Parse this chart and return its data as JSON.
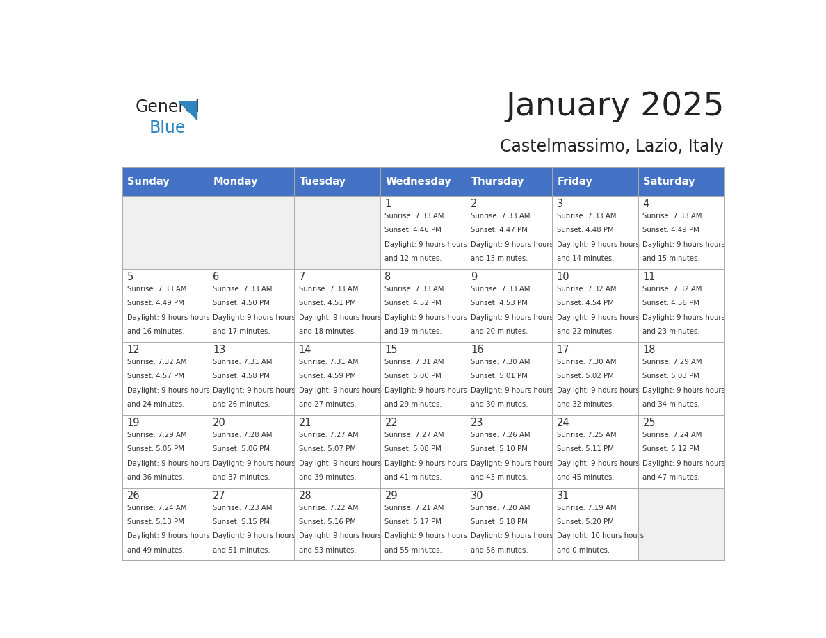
{
  "title": "January 2025",
  "subtitle": "Castelmassimo, Lazio, Italy",
  "days_of_week": [
    "Sunday",
    "Monday",
    "Tuesday",
    "Wednesday",
    "Thursday",
    "Friday",
    "Saturday"
  ],
  "header_bg": "#4472C4",
  "header_text": "#FFFFFF",
  "cell_bg_normal": "#FFFFFF",
  "cell_bg_empty": "#F0F0F0",
  "cell_border": "#AAAAAA",
  "day_number_color": "#333333",
  "text_color": "#333333",
  "title_color": "#222222",
  "subtitle_color": "#222222",
  "logo_general_color": "#222222",
  "logo_blue_color": "#2E86C1",
  "calendar_data": [
    [
      {
        "day": null,
        "sunrise": null,
        "sunset": null,
        "daylight": null
      },
      {
        "day": null,
        "sunrise": null,
        "sunset": null,
        "daylight": null
      },
      {
        "day": null,
        "sunrise": null,
        "sunset": null,
        "daylight": null
      },
      {
        "day": 1,
        "sunrise": "7:33 AM",
        "sunset": "4:46 PM",
        "daylight": "9 hours and 12 minutes."
      },
      {
        "day": 2,
        "sunrise": "7:33 AM",
        "sunset": "4:47 PM",
        "daylight": "9 hours and 13 minutes."
      },
      {
        "day": 3,
        "sunrise": "7:33 AM",
        "sunset": "4:48 PM",
        "daylight": "9 hours and 14 minutes."
      },
      {
        "day": 4,
        "sunrise": "7:33 AM",
        "sunset": "4:49 PM",
        "daylight": "9 hours and 15 minutes."
      }
    ],
    [
      {
        "day": 5,
        "sunrise": "7:33 AM",
        "sunset": "4:49 PM",
        "daylight": "9 hours and 16 minutes."
      },
      {
        "day": 6,
        "sunrise": "7:33 AM",
        "sunset": "4:50 PM",
        "daylight": "9 hours and 17 minutes."
      },
      {
        "day": 7,
        "sunrise": "7:33 AM",
        "sunset": "4:51 PM",
        "daylight": "9 hours and 18 minutes."
      },
      {
        "day": 8,
        "sunrise": "7:33 AM",
        "sunset": "4:52 PM",
        "daylight": "9 hours and 19 minutes."
      },
      {
        "day": 9,
        "sunrise": "7:33 AM",
        "sunset": "4:53 PM",
        "daylight": "9 hours and 20 minutes."
      },
      {
        "day": 10,
        "sunrise": "7:32 AM",
        "sunset": "4:54 PM",
        "daylight": "9 hours and 22 minutes."
      },
      {
        "day": 11,
        "sunrise": "7:32 AM",
        "sunset": "4:56 PM",
        "daylight": "9 hours and 23 minutes."
      }
    ],
    [
      {
        "day": 12,
        "sunrise": "7:32 AM",
        "sunset": "4:57 PM",
        "daylight": "9 hours and 24 minutes."
      },
      {
        "day": 13,
        "sunrise": "7:31 AM",
        "sunset": "4:58 PM",
        "daylight": "9 hours and 26 minutes."
      },
      {
        "day": 14,
        "sunrise": "7:31 AM",
        "sunset": "4:59 PM",
        "daylight": "9 hours and 27 minutes."
      },
      {
        "day": 15,
        "sunrise": "7:31 AM",
        "sunset": "5:00 PM",
        "daylight": "9 hours and 29 minutes."
      },
      {
        "day": 16,
        "sunrise": "7:30 AM",
        "sunset": "5:01 PM",
        "daylight": "9 hours and 30 minutes."
      },
      {
        "day": 17,
        "sunrise": "7:30 AM",
        "sunset": "5:02 PM",
        "daylight": "9 hours and 32 minutes."
      },
      {
        "day": 18,
        "sunrise": "7:29 AM",
        "sunset": "5:03 PM",
        "daylight": "9 hours and 34 minutes."
      }
    ],
    [
      {
        "day": 19,
        "sunrise": "7:29 AM",
        "sunset": "5:05 PM",
        "daylight": "9 hours and 36 minutes."
      },
      {
        "day": 20,
        "sunrise": "7:28 AM",
        "sunset": "5:06 PM",
        "daylight": "9 hours and 37 minutes."
      },
      {
        "day": 21,
        "sunrise": "7:27 AM",
        "sunset": "5:07 PM",
        "daylight": "9 hours and 39 minutes."
      },
      {
        "day": 22,
        "sunrise": "7:27 AM",
        "sunset": "5:08 PM",
        "daylight": "9 hours and 41 minutes."
      },
      {
        "day": 23,
        "sunrise": "7:26 AM",
        "sunset": "5:10 PM",
        "daylight": "9 hours and 43 minutes."
      },
      {
        "day": 24,
        "sunrise": "7:25 AM",
        "sunset": "5:11 PM",
        "daylight": "9 hours and 45 minutes."
      },
      {
        "day": 25,
        "sunrise": "7:24 AM",
        "sunset": "5:12 PM",
        "daylight": "9 hours and 47 minutes."
      }
    ],
    [
      {
        "day": 26,
        "sunrise": "7:24 AM",
        "sunset": "5:13 PM",
        "daylight": "9 hours and 49 minutes."
      },
      {
        "day": 27,
        "sunrise": "7:23 AM",
        "sunset": "5:15 PM",
        "daylight": "9 hours and 51 minutes."
      },
      {
        "day": 28,
        "sunrise": "7:22 AM",
        "sunset": "5:16 PM",
        "daylight": "9 hours and 53 minutes."
      },
      {
        "day": 29,
        "sunrise": "7:21 AM",
        "sunset": "5:17 PM",
        "daylight": "9 hours and 55 minutes."
      },
      {
        "day": 30,
        "sunrise": "7:20 AM",
        "sunset": "5:18 PM",
        "daylight": "9 hours and 58 minutes."
      },
      {
        "day": 31,
        "sunrise": "7:19 AM",
        "sunset": "5:20 PM",
        "daylight": "10 hours and 0 minutes."
      },
      {
        "day": null,
        "sunrise": null,
        "sunset": null,
        "daylight": null
      }
    ]
  ]
}
